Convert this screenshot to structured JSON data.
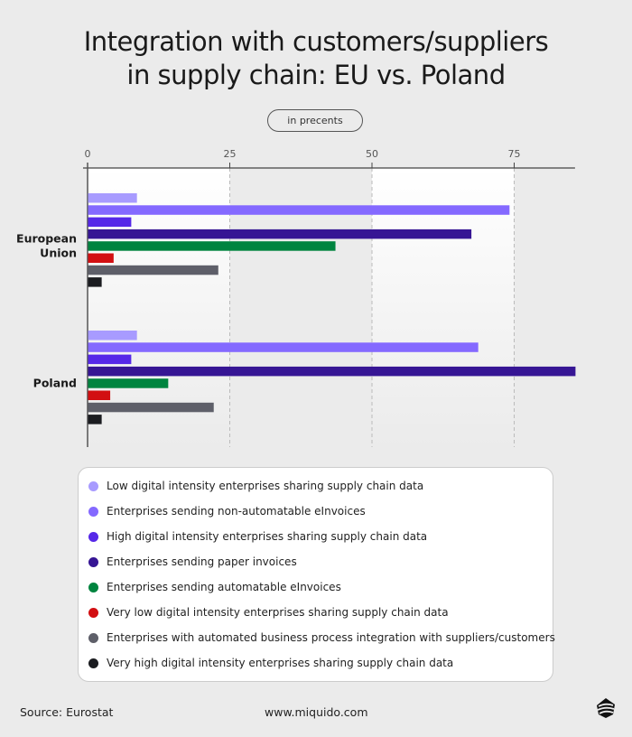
{
  "title_lines": [
    "Integration with customers/suppliers",
    "in supply chain: EU vs. Poland"
  ],
  "unit_label": "in precents",
  "chart_data": {
    "type": "bar",
    "orientation": "horizontal",
    "title": "Integration with customers/suppliers in supply chain: EU vs. Poland",
    "categories": [
      "European Union",
      "Poland"
    ],
    "category_labels": [
      [
        "European",
        "Union"
      ],
      [
        "Poland"
      ]
    ],
    "xlim": [
      0,
      85.7
    ],
    "xticks": [
      0,
      25,
      50,
      75
    ],
    "grid": "vertical dashed",
    "legend_placement": "bottom",
    "series": [
      {
        "name": "Low digital intensity enterprises sharing supply chain data",
        "color": "#a89bff",
        "values": [
          8.6,
          8.6
        ]
      },
      {
        "name": "Enterprises sending non-automatable eInvoices",
        "color": "#8469ff",
        "values": [
          74.1,
          68.6
        ]
      },
      {
        "name": "High digital intensity enterprises sharing supply chain data",
        "color": "#5628e8",
        "values": [
          7.6,
          7.6
        ]
      },
      {
        "name": "Enterprises sending paper invoices",
        "color": "#361594",
        "values": [
          67.4,
          85.7
        ]
      },
      {
        "name": "Enterprises sending automatable eInvoices",
        "color": "#00843f",
        "values": [
          43.5,
          14.1
        ]
      },
      {
        "name": "Very low digital intensity enterprises sharing supply chain data",
        "color": "#d20f12",
        "values": [
          4.5,
          3.9
        ]
      },
      {
        "name": "Enterprises with automated business process integration with suppliers/customers",
        "color": "#5e5f69",
        "values": [
          22.9,
          22.1
        ]
      },
      {
        "name": "Very high digital intensity enterprises sharing supply chain data",
        "color": "#1b1c20",
        "values": [
          2.4,
          2.4
        ]
      }
    ]
  },
  "footer": {
    "source": "Source: Eurostat",
    "website": "www.miquido.com",
    "logo": "miquido-logo"
  }
}
